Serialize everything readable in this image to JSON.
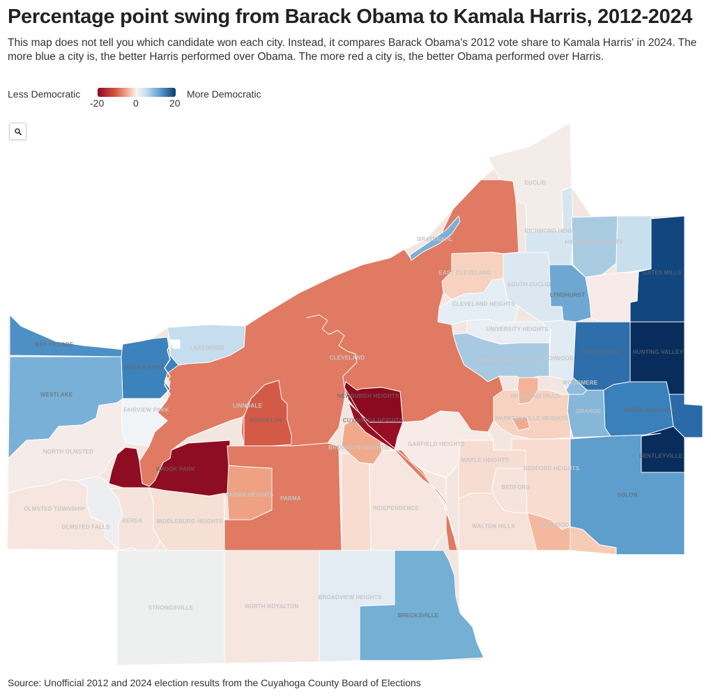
{
  "title": "Percentage point swing from Barack Obama to Kamala Harris, 2012-2024",
  "subtitle": "This map does not tell you which candidate won each city. Instead, it compares Barack Obama's 2012 vote share to Kamala Harris' in 2024. The more blue a city is, the better Harris performed over Obama. The more red a city is, the better Obama performed over Harris.",
  "legend": {
    "low_label": "Less Democratic",
    "high_label": "More Democratic",
    "ticks": [
      "-20",
      "0",
      "20"
    ],
    "colors": {
      "dark_red": "#8b0a1f",
      "red": "#e07a62",
      "light_red": "#f6d5c4",
      "neutral": "#eeeeee",
      "light_blue": "#c9dfee",
      "blue": "#5d9ecd",
      "dark_blue": "#0b3a70"
    }
  },
  "zoom_button": {
    "icon": "search-icon"
  },
  "places": {
    "euclid": "EUCLID",
    "richmond_heights": "RICHMOND HEIGHTS",
    "highland_heights": "HIGHLAND HEIGHTS",
    "bratenahl": "BRATENAHL",
    "east_cleveland": "EAST CLEVELAND",
    "south_euclid": "SOUTH EUCLID",
    "lyndhurst": "LYNDHURST",
    "gates_mills": "GATES MILLS",
    "cleveland_heights": "CLEVELAND HEIGHTS",
    "university_heights": "UNIVERSITY HEIGHTS",
    "lakewood": "LAKEWOOD",
    "bay_village": "BAY VILLAGE",
    "cleveland": "CLEVELAND",
    "shaker_heights": "SHAKER HEIGHTS",
    "beachwood": "BEACHWOOD",
    "pepper_pike": "PEPPER PIKE",
    "hunting_valley": "HUNTING VALLEY",
    "rocky_river": "ROCKY RIVER",
    "westlake": "WESTLAKE",
    "woodmere": "WOODMERE",
    "newburgh_heights": "NEWBURGH HEIGHTS",
    "highland_hills": "HIGHLAND HILLS",
    "linndale": "LINNDALE",
    "fairview_park": "FAIRVIEW PARK",
    "brooklyn": "BROOKLYN",
    "cuyahoga_heights": "CUYAHOGA HEIGHTS",
    "orange": "ORANGE",
    "moreland_hills": "MORELAND HILLS",
    "warrensville_heights": "WARRENSVILLE HEIGHTS",
    "north_olmsted": "NORTH OLMSTED",
    "garfield_heights": "GARFIELD HEIGHTS",
    "brooklyn_heights": "BROOKLYN HEIGHTS",
    "bentleyville": "BENTLEYVILLE",
    "maple_heights": "MAPLE HEIGHTS",
    "brook_park": "BROOK PARK",
    "bedford_heights": "BEDFORD HEIGHTS",
    "bedford": "BEDFORD",
    "parma_heights": "PARMA HEIGHTS",
    "parma": "PARMA",
    "solon": "SOLON",
    "olmsted_township": "OLMSTED TOWNSHIP",
    "berea": "BEREA",
    "middleburg_heights": "MIDDLEBURG HEIGHTS",
    "independence": "INDEPENDENCE",
    "olmsted_falls": "OLMSTED FALLS",
    "walton_hills": "WALTON HILLS",
    "oakwood": "OAKWOOD",
    "broadview_heights": "BROADVIEW HEIGHTS",
    "north_royalton": "NORTH ROYALTON",
    "strongsville": "STRONGSVILLE",
    "brecksville": "BRECKSVILLE"
  },
  "source": "Source: Unofficial 2012 and 2024 election results from the Cuyahoga County Board of Elections"
}
